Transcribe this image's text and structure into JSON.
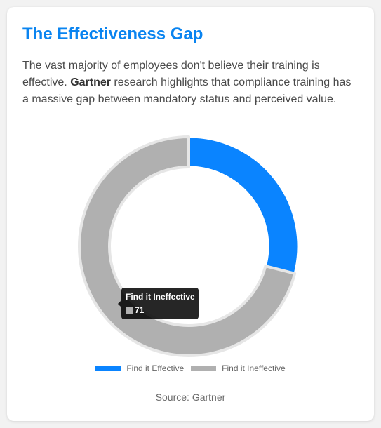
{
  "card": {
    "title": "The Effectiveness Gap",
    "description_pre": "The vast majority of employees don't believe their training is effective. ",
    "description_bold": "Gartner",
    "description_post": " research highlights that compliance training has a massive gap between mandatory status and perceived value.",
    "source": "Source: Gartner"
  },
  "chart_data": {
    "type": "pie",
    "variant": "doughnut",
    "categories": [
      "Find it Effective",
      "Find it Ineffective"
    ],
    "values": [
      29,
      71
    ],
    "colors": [
      "#0a84ff",
      "#b0b0b0"
    ],
    "legend_position": "bottom",
    "tooltip": {
      "label": "Find it Ineffective",
      "value": "71"
    }
  }
}
